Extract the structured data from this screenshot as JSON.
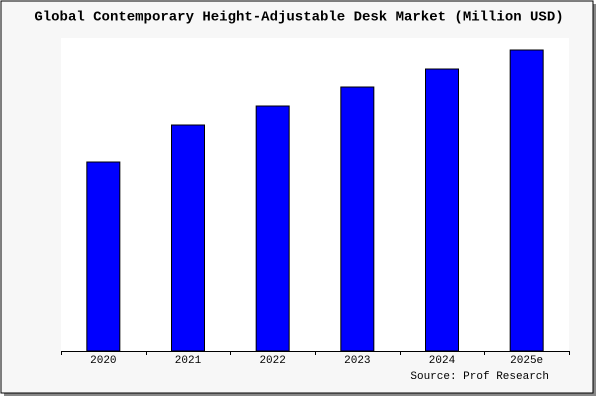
{
  "chart_data": {
    "type": "bar",
    "title": "Global Contemporary Height-Adjustable Desk Market (Million USD)",
    "categories": [
      "2020",
      "2021",
      "2022",
      "2023",
      "2024",
      "2025e"
    ],
    "values": [
      189,
      226,
      245,
      264,
      282,
      301
    ],
    "color": "#0000ff",
    "ylim": [
      0,
      310
    ],
    "source": "Source: Prof Research"
  }
}
